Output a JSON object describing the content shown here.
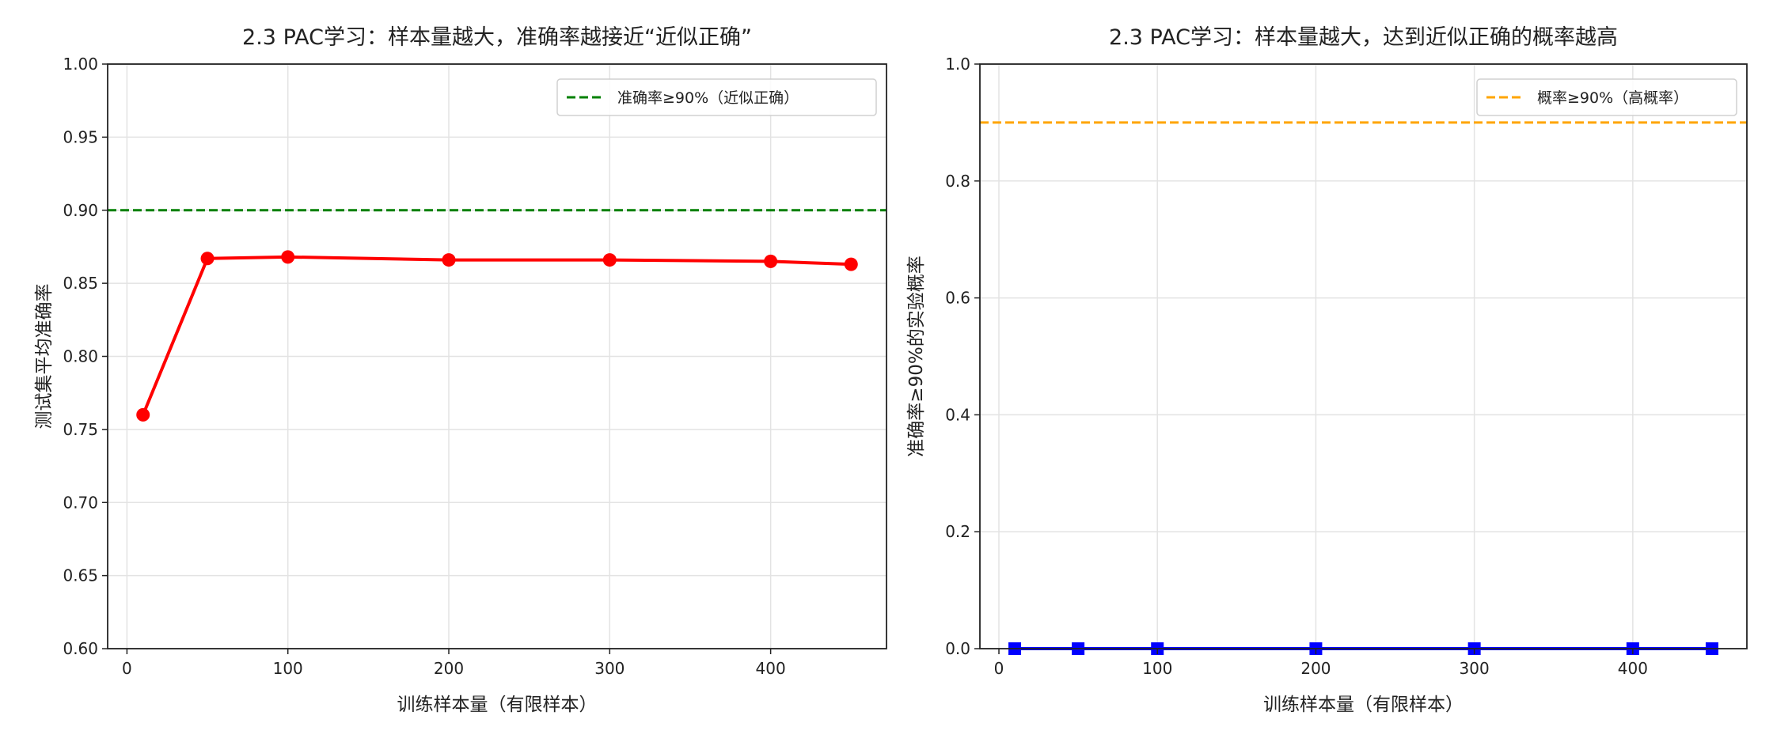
{
  "chart_data": [
    {
      "type": "line",
      "title": "2.3 PAC学习：样本量越大，准确率越接近“近似正确”",
      "xlabel": "训练样本量（有限样本）",
      "ylabel": "测试集平均准确率",
      "x": [
        10,
        50,
        100,
        200,
        300,
        400,
        450
      ],
      "series": [
        {
          "name": "test_accuracy",
          "values": [
            0.76,
            0.867,
            0.868,
            0.866,
            0.866,
            0.865,
            0.863
          ],
          "color": "#ff0000",
          "marker": "circle"
        }
      ],
      "reference_line": {
        "y": 0.9,
        "label": "准确率≥90%（近似正确）",
        "color": "#008000",
        "style": "dashed"
      },
      "xlim": [
        -12,
        472
      ],
      "ylim": [
        0.6,
        1.0
      ],
      "xticks": [
        "0",
        "100",
        "200",
        "300",
        "400"
      ],
      "xtick_values": [
        0,
        100,
        200,
        300,
        400
      ],
      "yticks": [
        "0.60",
        "0.65",
        "0.70",
        "0.75",
        "0.80",
        "0.85",
        "0.90",
        "0.95",
        "1.00"
      ],
      "ytick_values": [
        0.6,
        0.65,
        0.7,
        0.75,
        0.8,
        0.85,
        0.9,
        0.95,
        1.0
      ],
      "grid": true,
      "legend": "top-right"
    },
    {
      "type": "line",
      "title": "2.3 PAC学习：样本量越大，达到近似正确的概率越高",
      "xlabel": "训练样本量（有限样本）",
      "ylabel": "准确率≥90%的实验概率",
      "x": [
        10,
        50,
        100,
        200,
        300,
        400,
        450
      ],
      "series": [
        {
          "name": "probability",
          "values": [
            0,
            0,
            0,
            0,
            0,
            0,
            0
          ],
          "color": "#0000ff",
          "marker": "square"
        }
      ],
      "reference_line": {
        "y": 0.9,
        "label": "概率≥90%（高概率）",
        "color": "#ffa500",
        "style": "dashed"
      },
      "xlim": [
        -12,
        472
      ],
      "ylim": [
        0.0,
        1.0
      ],
      "xticks": [
        "0",
        "100",
        "200",
        "300",
        "400"
      ],
      "xtick_values": [
        0,
        100,
        200,
        300,
        400
      ],
      "yticks": [
        "0.0",
        "0.2",
        "0.4",
        "0.6",
        "0.8",
        "1.0"
      ],
      "ytick_values": [
        0,
        0.2,
        0.4,
        0.6,
        0.8,
        1.0
      ],
      "grid": true,
      "legend": "top-right"
    }
  ]
}
